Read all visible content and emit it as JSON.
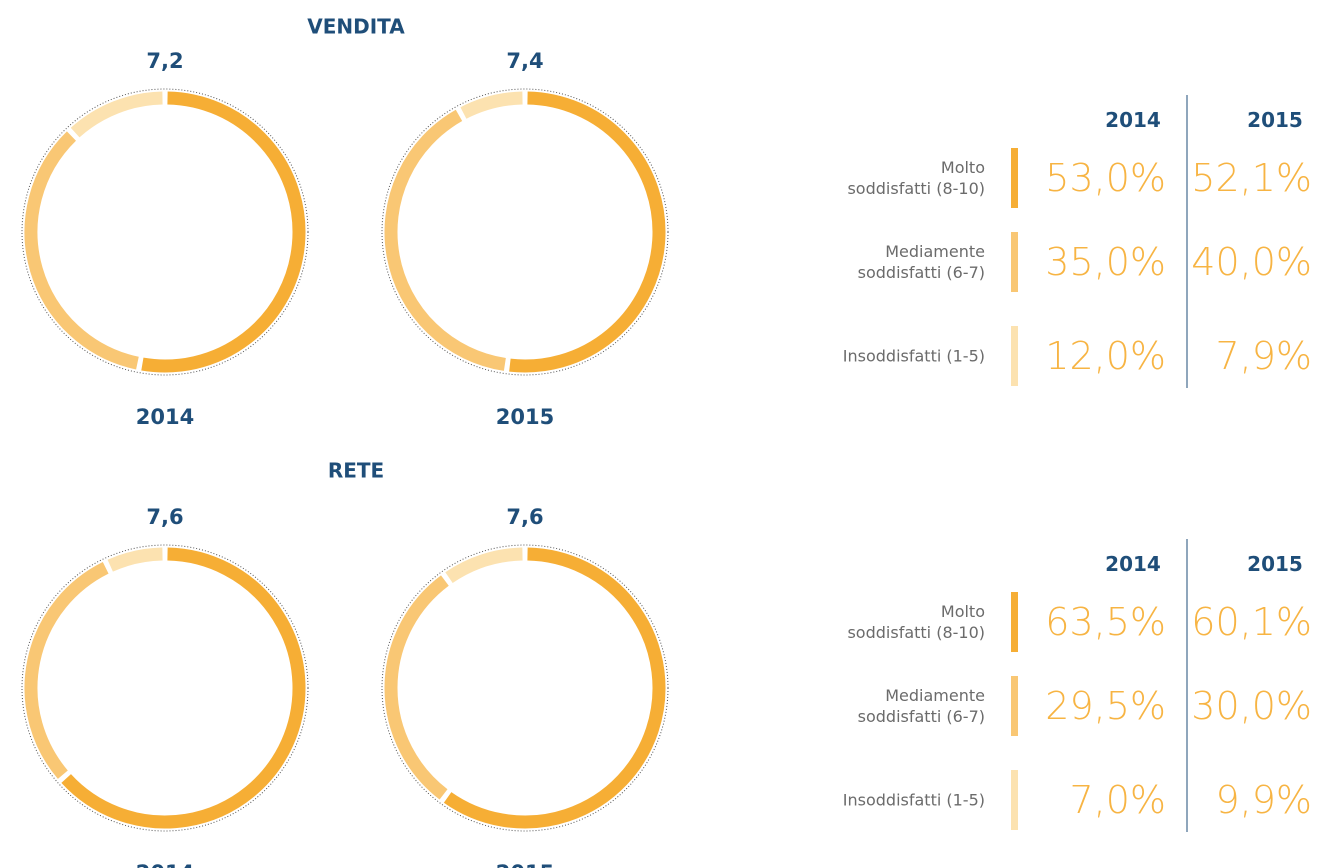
{
  "chart_data": [
    {
      "type": "donut",
      "title": "VENDITA",
      "categories": [
        "Molto\nsoddisfatti (8-10)",
        "Mediamente\nsoddisfatti (6-7)",
        "Insoddisfatti (1-5)"
      ],
      "colors": [
        "#f6ae35",
        "#f9c774",
        "#fce2b0"
      ],
      "series": [
        {
          "name": "2014",
          "score": {
            "value": 7.2,
            "label": "7,2"
          },
          "values": [
            53.0,
            35.0,
            12.0
          ],
          "value_labels": [
            "53,0%",
            "35,0%",
            "12,0%"
          ]
        },
        {
          "name": "2015",
          "score": {
            "value": 7.4,
            "label": "7,4"
          },
          "values": [
            52.1,
            40.0,
            7.9
          ],
          "value_labels": [
            "52,1%",
            "40,0%",
            "7,9%"
          ]
        }
      ]
    },
    {
      "type": "donut",
      "title": "RETE",
      "categories": [
        "Molto\nsoddisfatti (8-10)",
        "Mediamente\nsoddisfatti (6-7)",
        "Insoddisfatti (1-5)"
      ],
      "colors": [
        "#f6ae35",
        "#f9c774",
        "#fce2b0"
      ],
      "series": [
        {
          "name": "2014",
          "score": {
            "value": 7.6,
            "label": "7,6"
          },
          "values": [
            63.5,
            29.5,
            7.0
          ],
          "value_labels": [
            "63,5%",
            "29,5%",
            "7,0%"
          ]
        },
        {
          "name": "2015",
          "score": {
            "value": 7.6,
            "label": "7,6"
          },
          "values": [
            60.1,
            30.0,
            9.9
          ],
          "value_labels": [
            "60,1%",
            "30,0%",
            "9,9%"
          ]
        }
      ]
    }
  ]
}
